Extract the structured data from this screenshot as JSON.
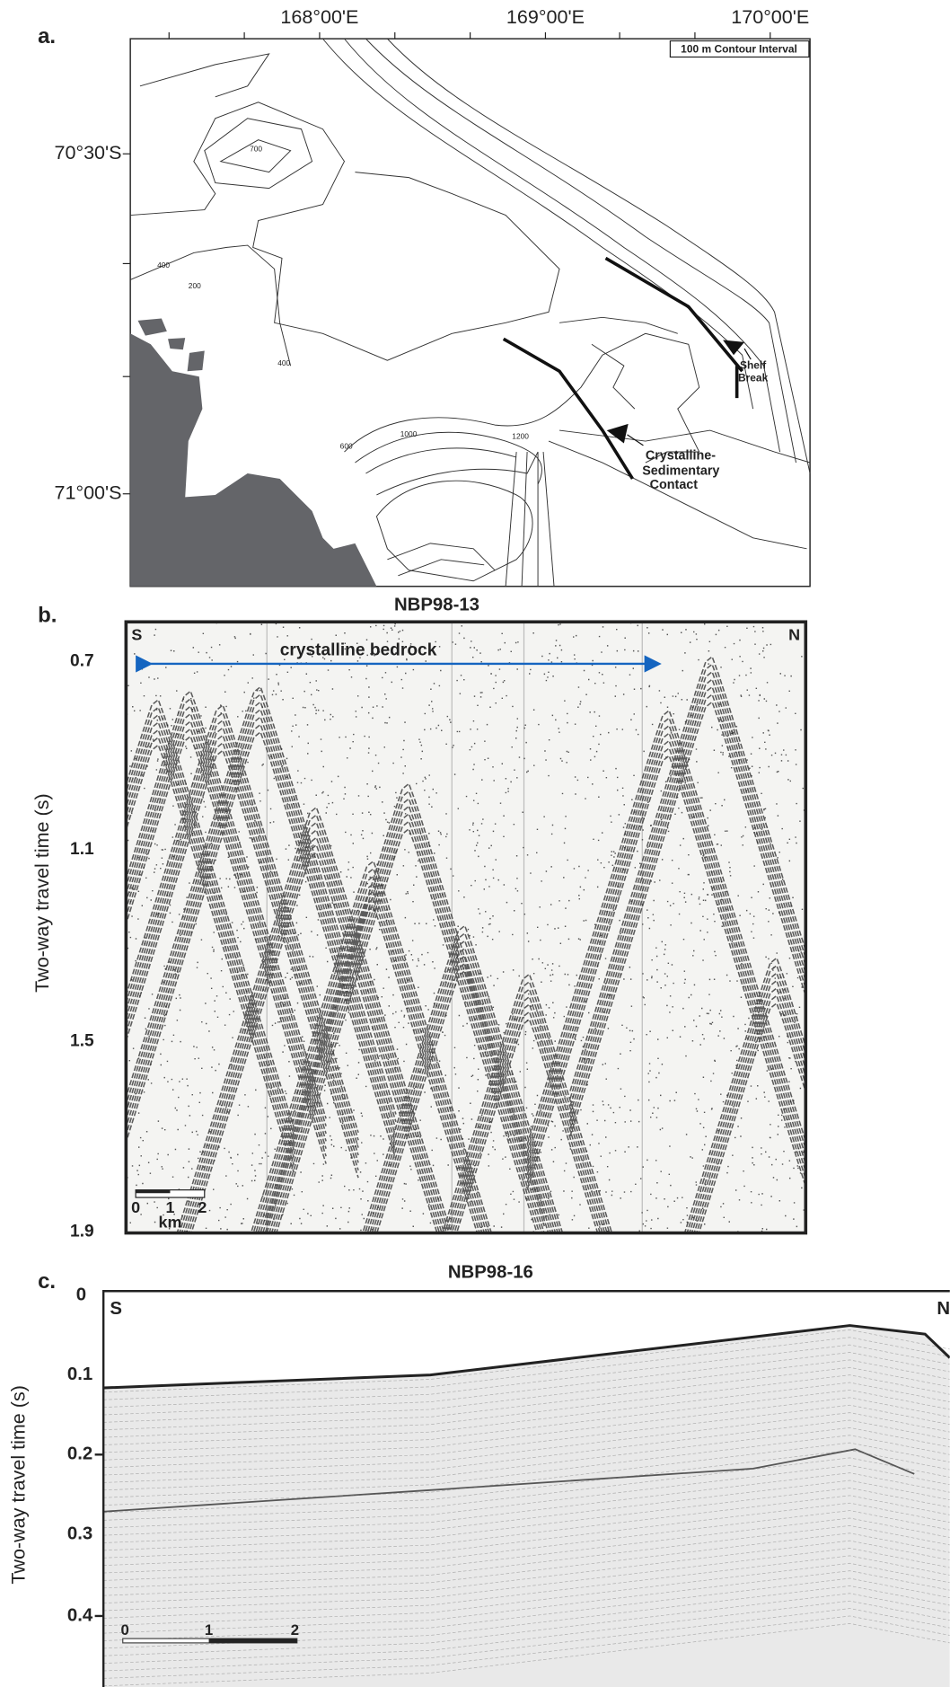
{
  "panel_a": {
    "label": "a.",
    "lon_ticks": [
      "168°00'E",
      "169°00'E",
      "170°00'E"
    ],
    "lat_ticks": [
      "70°30'S",
      "71°00'S"
    ],
    "legend": "100 m Contour Interval",
    "contour_labels": [
      "700",
      "400",
      "200",
      "400",
      "600",
      "1000",
      "1200"
    ],
    "shelf_break": [
      "Shelf",
      "Break"
    ],
    "contact": [
      "Crystalline-",
      "Sedimentary",
      "Contact"
    ]
  },
  "panel_b": {
    "label": "b.",
    "title": "NBP98-13",
    "y_axis_label": "Two-way travel time (s)",
    "yticks": [
      "0.7",
      "1.1",
      "1.5",
      "1.9"
    ],
    "left_end": "S",
    "right_end": "N",
    "annotation": "crystalline bedrock",
    "scale_ticks": [
      "0",
      "1",
      "2"
    ],
    "scale_unit": "km"
  },
  "panel_c": {
    "label": "c.",
    "title": "NBP98-16",
    "y_axis_label": "Two-way travel time (s)",
    "yticks": [
      "0",
      "0.1",
      "0.2",
      "0.3",
      "0.4"
    ],
    "left_end": "S",
    "right_end": "N",
    "scale_ticks": [
      "0",
      "1",
      "2"
    ]
  }
}
